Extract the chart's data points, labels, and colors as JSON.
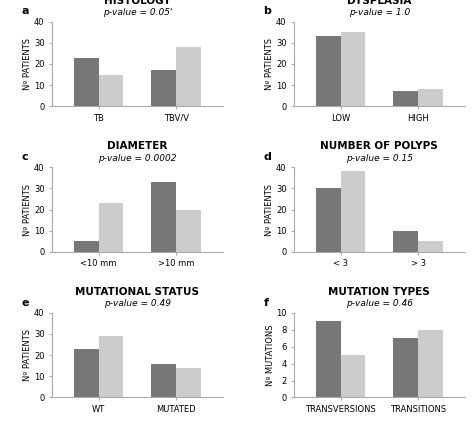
{
  "subplots": [
    {
      "label": "a",
      "title": "HISTOLOGY",
      "pvalue": "p-value = 0.05'",
      "categories": [
        "TB",
        "TBV/V"
      ],
      "dark_values": [
        23,
        17
      ],
      "light_values": [
        15,
        28
      ],
      "ylabel": "Nº PATIENTS",
      "ylim": [
        0,
        40
      ],
      "yticks": [
        0,
        10,
        20,
        30,
        40
      ]
    },
    {
      "label": "b",
      "title": "DYSPLASIA",
      "pvalue": "p-value = 1.0",
      "categories": [
        "LOW",
        "HIGH"
      ],
      "dark_values": [
        33,
        7
      ],
      "light_values": [
        35,
        8
      ],
      "ylabel": "Nº PATIENTS",
      "ylim": [
        0,
        40
      ],
      "yticks": [
        0,
        10,
        20,
        30,
        40
      ]
    },
    {
      "label": "c",
      "title": "DIAMETER",
      "pvalue": "p-value = 0.0002",
      "categories": [
        "<10 mm",
        ">10 mm"
      ],
      "dark_values": [
        5,
        33
      ],
      "light_values": [
        23,
        20
      ],
      "ylabel": "Nº PATIENTS",
      "ylim": [
        0,
        40
      ],
      "yticks": [
        0,
        10,
        20,
        30,
        40
      ]
    },
    {
      "label": "d",
      "title": "NUMBER OF POLYPS",
      "pvalue": "p-value = 0.15",
      "categories": [
        "< 3",
        "> 3"
      ],
      "dark_values": [
        30,
        10
      ],
      "light_values": [
        38,
        5
      ],
      "ylabel": "Nº PATIENTS",
      "ylim": [
        0,
        40
      ],
      "yticks": [
        0,
        10,
        20,
        30,
        40
      ]
    },
    {
      "label": "e",
      "title": "MUTATIONAL STATUS",
      "pvalue": "p-value = 0.49",
      "categories": [
        "WT",
        "MUTATED"
      ],
      "dark_values": [
        23,
        16
      ],
      "light_values": [
        29,
        14
      ],
      "ylabel": "Nº PATIENTS",
      "ylim": [
        0,
        40
      ],
      "yticks": [
        0,
        10,
        20,
        30,
        40
      ]
    },
    {
      "label": "f",
      "title": "MUTATION TYPES",
      "pvalue": "p-value = 0.46",
      "categories": [
        "TRANSVERSIONS",
        "TRANSITIONS"
      ],
      "dark_values": [
        9,
        7
      ],
      "light_values": [
        5,
        8
      ],
      "ylabel": "Nº MUTATIONS",
      "ylim": [
        0,
        10
      ],
      "yticks": [
        0,
        2,
        4,
        6,
        8,
        10
      ]
    }
  ],
  "dark_color": "#777777",
  "light_color": "#cccccc",
  "bg_color": "#ffffff",
  "bar_width": 0.32,
  "title_fontsize": 7.5,
  "pvalue_fontsize": 6.5,
  "label_fontsize": 8,
  "tick_fontsize": 6,
  "ylabel_fontsize": 6
}
